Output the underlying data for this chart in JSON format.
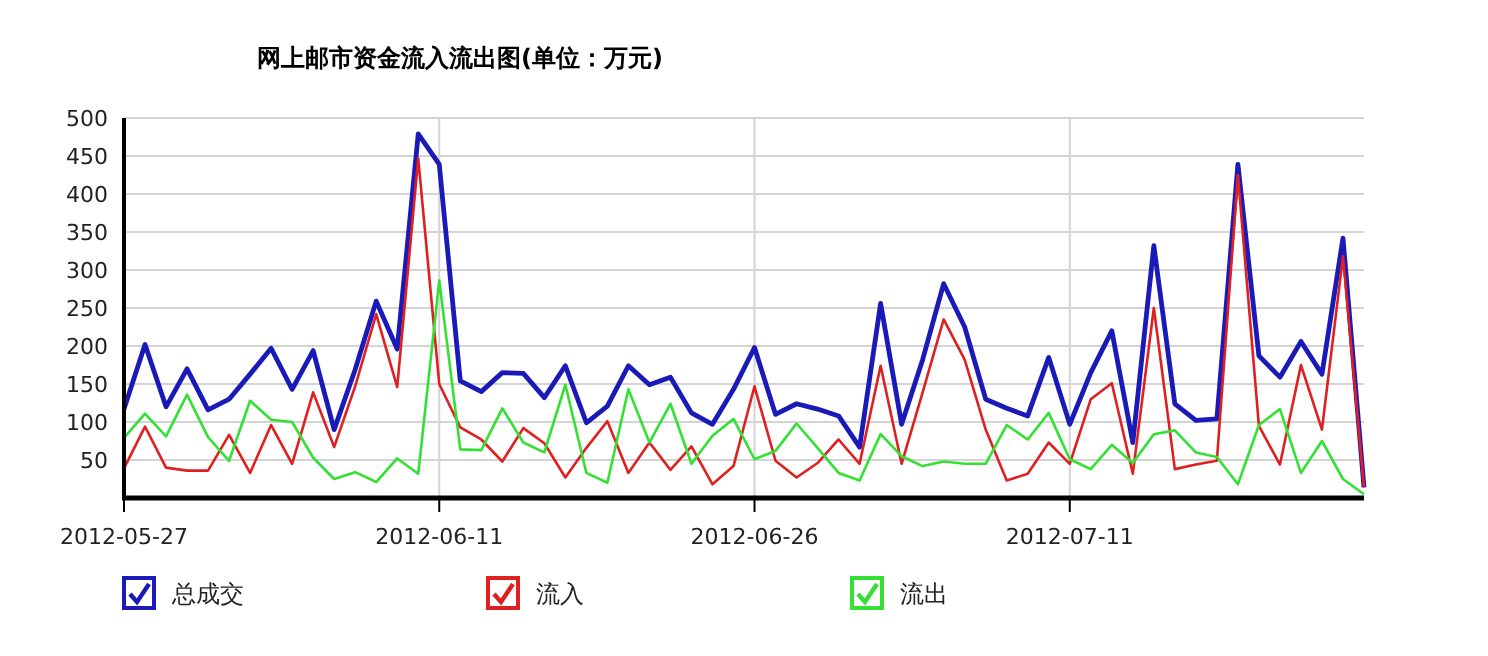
{
  "chart_data": {
    "type": "line",
    "title": "网上邮市资金流入流出图(单位：万元)",
    "x": [
      "2012-05-27",
      "2012-05-28",
      "2012-05-29",
      "2012-05-30",
      "2012-05-31",
      "2012-06-01",
      "2012-06-02",
      "2012-06-03",
      "2012-06-04",
      "2012-06-05",
      "2012-06-06",
      "2012-06-07",
      "2012-06-08",
      "2012-06-09",
      "2012-06-10",
      "2012-06-11",
      "2012-06-12",
      "2012-06-13",
      "2012-06-14",
      "2012-06-15",
      "2012-06-16",
      "2012-06-17",
      "2012-06-18",
      "2012-06-19",
      "2012-06-20",
      "2012-06-21",
      "2012-06-22",
      "2012-06-23",
      "2012-06-24",
      "2012-06-25",
      "2012-06-26",
      "2012-06-27",
      "2012-06-28",
      "2012-06-29",
      "2012-06-30",
      "2012-07-01",
      "2012-07-02",
      "2012-07-03",
      "2012-07-04",
      "2012-07-05",
      "2012-07-06",
      "2012-07-07",
      "2012-07-08",
      "2012-07-09",
      "2012-07-10",
      "2012-07-11",
      "2012-07-12",
      "2012-07-13",
      "2012-07-14",
      "2012-07-15",
      "2012-07-16",
      "2012-07-17",
      "2012-07-18",
      "2012-07-19",
      "2012-07-20",
      "2012-07-21",
      "2012-07-22",
      "2012-07-23",
      "2012-07-24",
      "2012-07-25"
    ],
    "series": [
      {
        "name": "总成交",
        "color": "#1a1ab8",
        "values": [
          117,
          202,
          120,
          170,
          116,
          130,
          163,
          197,
          143,
          194,
          90,
          169,
          259,
          196,
          479,
          439,
          154,
          140,
          165,
          164,
          132,
          174,
          99,
          121,
          174,
          149,
          159,
          112,
          97,
          143,
          198,
          110,
          124,
          117,
          108,
          67,
          256,
          97,
          182,
          282,
          225,
          130,
          118,
          108,
          185,
          97,
          165,
          220,
          73,
          332,
          124,
          102,
          104,
          439,
          187,
          159,
          206,
          163,
          342,
          14
        ]
      },
      {
        "name": "流入",
        "color": "#e02020",
        "values": [
          39,
          94,
          40,
          36,
          36,
          83,
          33,
          96,
          45,
          139,
          67,
          147,
          242,
          146,
          447,
          150,
          93,
          77,
          48,
          92,
          72,
          27,
          66,
          101,
          33,
          73,
          37,
          68,
          18,
          42,
          147,
          49,
          27,
          46,
          77,
          45,
          174,
          45,
          139,
          235,
          182,
          90,
          23,
          32,
          73,
          45,
          130,
          151,
          32,
          250,
          38,
          44,
          49,
          425,
          95,
          44,
          175,
          90,
          318,
          14
        ]
      },
      {
        "name": "流出",
        "color": "#33e033",
        "values": [
          79,
          111,
          81,
          136,
          80,
          49,
          128,
          103,
          100,
          53,
          25,
          34,
          21,
          52,
          32,
          286,
          64,
          63,
          118,
          73,
          60,
          149,
          33,
          20,
          143,
          73,
          124,
          45,
          82,
          104,
          51,
          62,
          98,
          66,
          33,
          23,
          84,
          55,
          42,
          48,
          45,
          45,
          96,
          77,
          112,
          51,
          38,
          70,
          46,
          84,
          89,
          60,
          54,
          18,
          96,
          117,
          33,
          75,
          25,
          5
        ]
      }
    ],
    "xlim": [
      "2012-05-27",
      "2012-07-25"
    ],
    "xticks": [
      "2012-05-27",
      "2012-06-11",
      "2012-06-26",
      "2012-07-11"
    ],
    "ylim": [
      0,
      500
    ],
    "yticks": [
      50,
      100,
      150,
      200,
      250,
      300,
      350,
      400,
      450,
      500
    ],
    "grid": true,
    "legend": "bottom",
    "marker": "none",
    "line_style": "solid"
  }
}
